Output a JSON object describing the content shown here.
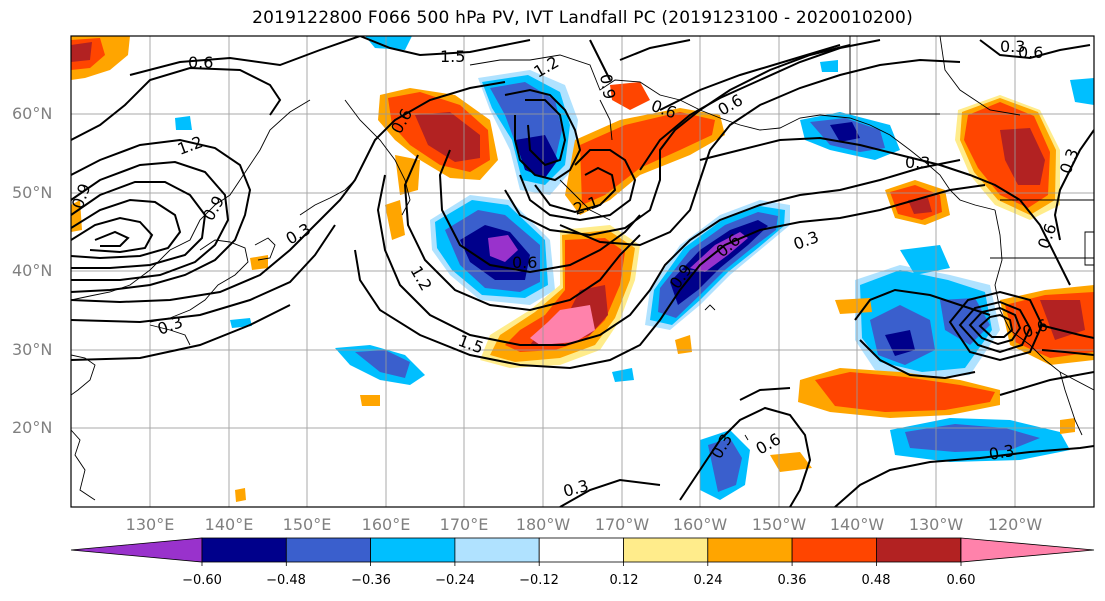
{
  "title": "2019122800 F066 500 hPa PV, IVT Landfall PC (2019123100 - 2020010200)",
  "lat_labels": [
    "60°N",
    "50°N",
    "40°N",
    "30°N",
    "20°N"
  ],
  "lon_labels": [
    "130°E",
    "140°E",
    "150°E",
    "160°E",
    "170°E",
    "180°W",
    "170°W",
    "160°W",
    "150°W",
    "140°W",
    "130°W",
    "120°W"
  ],
  "colorbar": {
    "ticks": [
      "−0.60",
      "−0.48",
      "−0.36",
      "−0.24",
      "−0.12",
      "0.12",
      "0.24",
      "0.36",
      "0.48",
      "0.60"
    ],
    "colors": [
      "#9932cc",
      "#00008b",
      "#3a5fcd",
      "#00bfff",
      "#b0e2ff",
      "#ffffff",
      "#ffec8b",
      "#ffa500",
      "#ff4500",
      "#b22222",
      "#ff82ab"
    ]
  },
  "contour_labels": [
    "0.6",
    "1.5",
    "1.2",
    "0.9",
    "0.3",
    "0.6",
    "1.2",
    "0.9",
    "1.5",
    "0.6",
    "2.1",
    "0.6",
    "0.9",
    "0.6",
    "0.3",
    "0.3",
    "0.6",
    "0.3",
    "0.6",
    "0.3",
    "0.3",
    "0.3",
    "0.6",
    "0.9",
    "0.3",
    "0.6",
    "1.2",
    "0.6",
    "0.3"
  ],
  "fill_colors": {
    "neg_light": "#b0e2ff",
    "neg_cyan": "#00bfff",
    "neg_mid": "#3a5fcd",
    "neg_dark": "#00008b",
    "neg_purple": "#9932cc",
    "pos_yellow": "#ffec8b",
    "pos_orange": "#ffa500",
    "pos_red": "#ff4500",
    "pos_dark": "#b22222",
    "pos_pink": "#ff82ab"
  }
}
